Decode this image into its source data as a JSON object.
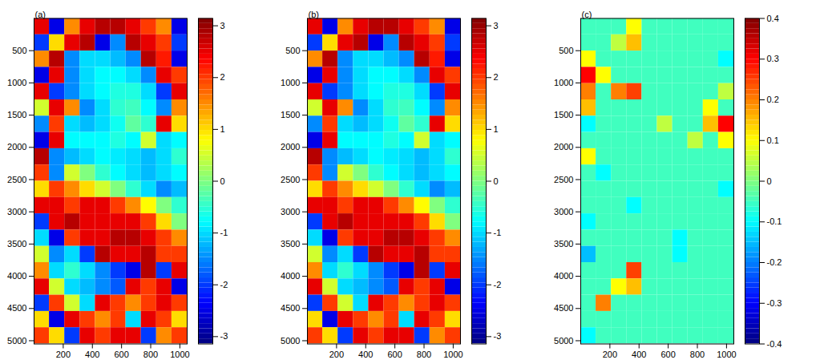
{
  "chart_data": [
    {
      "type": "heatmap",
      "panel_label": "(a)",
      "xlim": [
        0,
        1050
      ],
      "ylim": [
        0,
        5050
      ],
      "xticks": [
        200,
        400,
        600,
        800,
        1000
      ],
      "yticks": [
        500,
        1000,
        1500,
        2000,
        2500,
        3000,
        3500,
        4000,
        4500,
        5000
      ],
      "colorbar": {
        "range": [
          -3.1416,
          3.1416
        ],
        "ticks": [
          -3,
          -2,
          -1,
          0,
          1,
          2,
          3
        ]
      },
      "cells": [
        [
          2.5,
          -2.5,
          1.5,
          2.5,
          2.8,
          2.8,
          2.5,
          2.0,
          1.5,
          -2.5
        ],
        [
          -2.0,
          1.0,
          2.5,
          2.8,
          -2.5,
          -1.5,
          2.8,
          2.5,
          2.0,
          -2.0
        ],
        [
          1.5,
          2.8,
          -1.5,
          -1.0,
          -1.0,
          -1.2,
          -1.5,
          2.8,
          2.2,
          -2.5
        ],
        [
          -2.5,
          2.5,
          -1.5,
          -1.0,
          -0.8,
          -0.8,
          -1.0,
          -1.5,
          2.5,
          2.0
        ],
        [
          2.5,
          -2.0,
          -1.5,
          -1.0,
          -0.8,
          -0.6,
          -0.6,
          -1.0,
          -2.0,
          2.5
        ],
        [
          0.5,
          2.5,
          1.5,
          -1.5,
          -1.0,
          -0.5,
          -0.4,
          -0.8,
          -1.5,
          1.5
        ],
        [
          -1.5,
          2.0,
          -1.0,
          -1.2,
          -1.0,
          -0.7,
          -0.2,
          -0.5,
          2.5,
          1.0
        ],
        [
          -2.5,
          2.5,
          -0.8,
          -0.8,
          -0.8,
          -0.6,
          -0.8,
          0.5,
          -1.0,
          -0.8
        ],
        [
          2.8,
          -1.5,
          -1.2,
          -1.0,
          -0.8,
          -0.9,
          -1.0,
          -1.2,
          -1.0,
          -0.5
        ],
        [
          2.0,
          -1.5,
          0.5,
          0.0,
          -0.5,
          -0.8,
          -1.0,
          -1.2,
          -1.0,
          -0.8
        ],
        [
          1.0,
          2.0,
          1.5,
          1.0,
          0.5,
          0.0,
          -0.5,
          -1.0,
          -1.5,
          -1.2
        ],
        [
          2.5,
          2.5,
          2.0,
          2.5,
          2.5,
          2.0,
          1.5,
          0.8,
          0.0,
          -0.5
        ],
        [
          -2.0,
          2.5,
          2.8,
          2.5,
          2.5,
          2.5,
          2.5,
          2.0,
          1.0,
          0.0
        ],
        [
          -1.0,
          -2.5,
          2.0,
          2.5,
          2.5,
          2.8,
          2.8,
          2.5,
          2.0,
          1.5
        ],
        [
          0.5,
          -1.5,
          -1.0,
          -2.0,
          2.8,
          2.5,
          2.5,
          2.8,
          2.0,
          2.0
        ],
        [
          1.5,
          -1.0,
          -0.5,
          -1.0,
          -1.5,
          -2.0,
          -2.5,
          2.8,
          -2.0,
          2.5
        ],
        [
          2.5,
          0.5,
          -1.0,
          -1.2,
          -1.5,
          -1.8,
          2.5,
          2.0,
          2.5,
          -2.5
        ],
        [
          -2.0,
          2.0,
          0.5,
          -1.0,
          2.5,
          2.0,
          1.5,
          2.0,
          2.5,
          2.0
        ],
        [
          1.0,
          -2.5,
          2.5,
          2.0,
          1.5,
          2.0,
          -1.0,
          2.5,
          2.0,
          1.0
        ],
        [
          2.0,
          1.0,
          -2.0,
          2.5,
          2.0,
          2.5,
          2.5,
          -2.0,
          1.5,
          2.0
        ]
      ]
    },
    {
      "type": "heatmap",
      "panel_label": "(b)",
      "xlim": [
        0,
        1050
      ],
      "ylim": [
        0,
        5050
      ],
      "xticks": [
        200,
        400,
        600,
        800,
        1000
      ],
      "yticks": [
        500,
        1000,
        1500,
        2000,
        2500,
        3000,
        3500,
        4000,
        4500,
        5000
      ],
      "colorbar": {
        "range": [
          -3.1416,
          3.1416
        ],
        "ticks": [
          -3,
          -2,
          -1,
          0,
          1,
          2,
          3
        ]
      },
      "cells": [
        [
          2.5,
          -2.5,
          1.5,
          2.5,
          2.8,
          2.8,
          2.5,
          2.0,
          1.5,
          -2.5
        ],
        [
          -2.0,
          1.0,
          2.5,
          2.8,
          -2.5,
          -1.5,
          2.8,
          2.5,
          2.0,
          -2.0
        ],
        [
          1.5,
          2.8,
          -1.5,
          -1.0,
          -1.0,
          -1.2,
          -1.5,
          2.8,
          2.2,
          -2.5
        ],
        [
          -2.5,
          2.5,
          -1.5,
          -1.0,
          -0.8,
          -0.8,
          -1.0,
          -1.5,
          2.5,
          2.0
        ],
        [
          2.5,
          -2.0,
          -1.5,
          -1.0,
          -0.8,
          -0.6,
          -0.6,
          -1.0,
          -2.0,
          2.5
        ],
        [
          0.5,
          2.5,
          1.5,
          -1.5,
          -1.0,
          -0.5,
          -0.4,
          -0.8,
          -1.5,
          1.5
        ],
        [
          -1.5,
          2.0,
          -1.0,
          -1.2,
          -1.0,
          -0.7,
          -0.2,
          -0.5,
          2.5,
          1.0
        ],
        [
          -2.5,
          2.5,
          -0.8,
          -0.8,
          -0.8,
          -0.6,
          -0.8,
          0.5,
          -1.0,
          -0.8
        ],
        [
          2.8,
          -1.5,
          -1.2,
          -1.0,
          -0.8,
          -0.9,
          -1.0,
          -1.2,
          -1.0,
          -0.5
        ],
        [
          2.0,
          -1.5,
          0.5,
          0.0,
          -0.5,
          -0.8,
          -1.0,
          -1.2,
          -1.0,
          -0.8
        ],
        [
          1.0,
          2.0,
          1.5,
          1.0,
          0.5,
          0.0,
          -0.5,
          -1.0,
          -1.5,
          -1.2
        ],
        [
          2.5,
          2.5,
          2.0,
          2.5,
          2.5,
          2.0,
          1.5,
          0.8,
          0.0,
          -0.5
        ],
        [
          -2.0,
          2.5,
          2.8,
          2.5,
          2.5,
          2.5,
          2.5,
          2.0,
          1.0,
          0.0
        ],
        [
          -1.0,
          -2.5,
          2.0,
          2.5,
          2.5,
          2.8,
          2.8,
          2.5,
          2.0,
          1.5
        ],
        [
          0.5,
          -1.5,
          -1.0,
          -2.0,
          2.8,
          2.5,
          2.5,
          2.8,
          2.0,
          2.0
        ],
        [
          1.5,
          -1.0,
          -0.5,
          -1.0,
          -1.5,
          -2.0,
          -2.5,
          2.8,
          -2.0,
          2.5
        ],
        [
          2.5,
          0.5,
          -1.0,
          -1.2,
          -1.5,
          -1.8,
          2.5,
          2.0,
          2.5,
          -2.5
        ],
        [
          -2.0,
          2.0,
          0.5,
          -1.0,
          2.5,
          2.0,
          1.5,
          2.0,
          2.5,
          2.0
        ],
        [
          1.0,
          -2.5,
          2.5,
          2.0,
          1.5,
          2.0,
          -1.0,
          2.5,
          2.0,
          1.0
        ],
        [
          2.0,
          1.0,
          -2.0,
          2.5,
          2.0,
          2.5,
          2.5,
          -2.0,
          1.5,
          2.0
        ]
      ]
    },
    {
      "type": "heatmap",
      "panel_label": "(c)",
      "xlim": [
        0,
        1050
      ],
      "ylim": [
        0,
        5050
      ],
      "xticks": [
        200,
        400,
        600,
        800,
        1000
      ],
      "yticks": [
        500,
        1000,
        1500,
        2000,
        2500,
        3000,
        3500,
        4000,
        4500,
        5000
      ],
      "colorbar": {
        "range": [
          -0.4,
          0.4
        ],
        "ticks": [
          -0.4,
          -0.3,
          -0.2,
          -0.1,
          0,
          0.1,
          0.2,
          0.3,
          0.4
        ]
      },
      "cells": [
        [
          -0.05,
          -0.05,
          -0.05,
          0.1,
          -0.05,
          -0.05,
          -0.05,
          -0.05,
          -0.05,
          -0.05
        ],
        [
          -0.05,
          -0.05,
          0.05,
          0.15,
          -0.05,
          -0.05,
          -0.05,
          -0.05,
          -0.05,
          -0.05
        ],
        [
          0.1,
          -0.05,
          -0.05,
          -0.05,
          -0.05,
          -0.05,
          -0.05,
          -0.05,
          -0.05,
          -0.1
        ],
        [
          0.3,
          0.1,
          -0.05,
          -0.05,
          -0.05,
          -0.05,
          -0.05,
          -0.05,
          -0.05,
          -0.05
        ],
        [
          0.2,
          -0.05,
          0.2,
          0.25,
          -0.05,
          -0.05,
          -0.05,
          -0.05,
          -0.05,
          0.05
        ],
        [
          0.15,
          -0.05,
          -0.05,
          -0.05,
          -0.05,
          -0.05,
          -0.05,
          -0.05,
          0.1,
          -0.05
        ],
        [
          -0.1,
          -0.05,
          -0.05,
          -0.05,
          -0.05,
          0.05,
          -0.05,
          -0.05,
          0.15,
          0.3
        ],
        [
          -0.05,
          -0.05,
          -0.05,
          -0.05,
          -0.05,
          -0.05,
          -0.05,
          0.05,
          -0.05,
          0.1
        ],
        [
          0.1,
          -0.05,
          -0.05,
          -0.05,
          -0.05,
          -0.05,
          -0.05,
          -0.05,
          -0.05,
          -0.05
        ],
        [
          -0.05,
          -0.1,
          -0.05,
          -0.05,
          -0.05,
          -0.05,
          -0.05,
          -0.05,
          -0.05,
          -0.05
        ],
        [
          -0.05,
          -0.05,
          -0.05,
          -0.05,
          -0.05,
          -0.05,
          -0.05,
          -0.05,
          -0.05,
          -0.1
        ],
        [
          -0.05,
          -0.05,
          -0.05,
          -0.1,
          -0.05,
          -0.05,
          -0.05,
          -0.05,
          -0.05,
          -0.05
        ],
        [
          -0.1,
          -0.05,
          -0.05,
          -0.05,
          -0.05,
          -0.05,
          -0.05,
          -0.05,
          -0.05,
          -0.05
        ],
        [
          -0.05,
          -0.05,
          -0.05,
          -0.05,
          -0.05,
          -0.05,
          -0.1,
          -0.05,
          -0.05,
          -0.05
        ],
        [
          -0.15,
          -0.05,
          -0.05,
          -0.05,
          -0.05,
          -0.05,
          -0.1,
          -0.05,
          -0.05,
          -0.05
        ],
        [
          -0.05,
          -0.05,
          -0.05,
          0.25,
          -0.05,
          -0.05,
          -0.05,
          -0.05,
          -0.05,
          -0.05
        ],
        [
          -0.05,
          -0.05,
          0.1,
          0.15,
          -0.05,
          -0.05,
          -0.05,
          -0.05,
          -0.05,
          -0.05
        ],
        [
          -0.05,
          0.2,
          -0.05,
          -0.05,
          -0.05,
          -0.05,
          -0.05,
          -0.05,
          -0.05,
          -0.05
        ],
        [
          -0.05,
          -0.05,
          -0.05,
          -0.05,
          -0.05,
          -0.05,
          -0.05,
          -0.05,
          -0.05,
          -0.05
        ],
        [
          -0.1,
          -0.05,
          -0.05,
          -0.05,
          -0.05,
          -0.05,
          -0.05,
          -0.05,
          -0.05,
          -0.05
        ]
      ]
    }
  ]
}
